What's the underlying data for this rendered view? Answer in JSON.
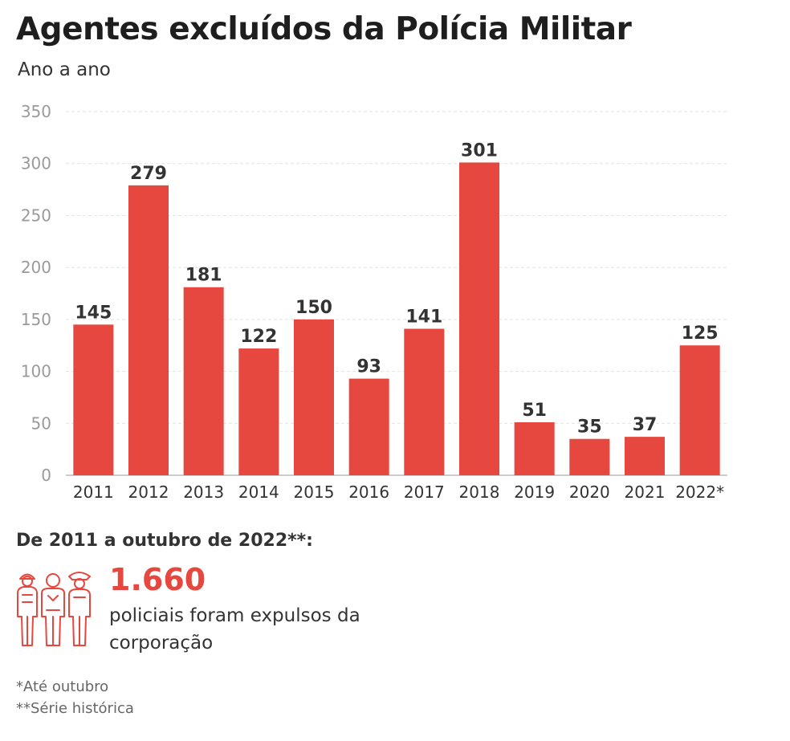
{
  "title": "Agentes excluídos da Polícia Militar",
  "subtitle": "Ano a ano",
  "colors": {
    "bar": "#e6473e",
    "grid": "#e2e2e2",
    "axis": "#bbbbbb"
  },
  "chart_data": {
    "type": "bar",
    "title": "Agentes excluídos da Polícia Militar",
    "subtitle": "Ano a ano",
    "xlabel": "",
    "ylabel": "",
    "ylim": [
      0,
      350
    ],
    "yticks": [
      0,
      50,
      100,
      150,
      200,
      250,
      300,
      350
    ],
    "grid": true,
    "categories": [
      "2011",
      "2012",
      "2013",
      "2014",
      "2015",
      "2016",
      "2017",
      "2018",
      "2019",
      "2020",
      "2021",
      "2022*"
    ],
    "values": [
      145,
      279,
      181,
      122,
      150,
      93,
      141,
      301,
      51,
      35,
      37,
      125
    ]
  },
  "summary": {
    "heading": "De 2011 a outubro de 2022**:",
    "total": "1.660",
    "description": "policiais foram expulsos da corporação",
    "icon": "police-officers-icon"
  },
  "notes": [
    "*Até outubro",
    "**Série histórica"
  ]
}
